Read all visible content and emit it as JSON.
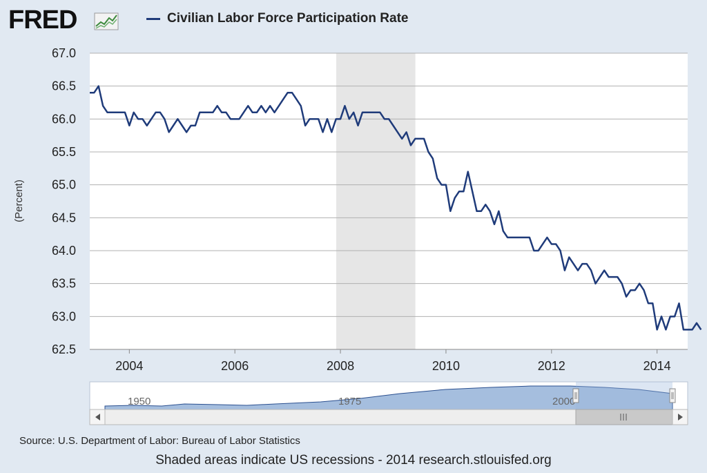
{
  "logo": {
    "text": "FRED"
  },
  "legend": {
    "label": "Civilian Labor Force Participation Rate",
    "color": "#1f3b7a"
  },
  "source": "Source: U.S. Department of Labor: Bureau of Labor Statistics",
  "footer": "Shaded areas indicate US recessions - 2014 research.stlouisfed.org",
  "colors": {
    "line": "#1f3b7a",
    "recession": "#e6e6e6",
    "grid": "#b0b0b0",
    "navigator_fill": "#7fa3d0",
    "navigator_selected": "#c9d7e8"
  },
  "navigator": {
    "labels": [
      "1950",
      "1975",
      "2000"
    ],
    "scroll_left_icon": "arrow-left-icon",
    "scroll_right_icon": "arrow-right-icon",
    "thumb_icon": "grip-icon"
  },
  "chart_data": {
    "type": "line",
    "title": "",
    "xlabel": "",
    "ylabel": "(Percent)",
    "xlim": [
      2003.25,
      2014.58
    ],
    "ylim": [
      62.5,
      67.0
    ],
    "yticks": [
      62.5,
      63.0,
      63.5,
      64.0,
      64.5,
      65.0,
      65.5,
      66.0,
      66.5,
      67.0
    ],
    "xticks": [
      2004,
      2006,
      2008,
      2010,
      2012,
      2014
    ],
    "grid": true,
    "legend_position": "top",
    "recessions": [
      [
        2007.92,
        2009.42
      ]
    ],
    "series": [
      {
        "name": "Civilian Labor Force Participation Rate",
        "start": 2003.25,
        "step_months": 1,
        "values": [
          66.4,
          66.4,
          66.5,
          66.2,
          66.1,
          66.1,
          66.1,
          66.1,
          66.1,
          65.9,
          66.1,
          66.0,
          66.0,
          65.9,
          66.0,
          66.1,
          66.1,
          66.0,
          65.8,
          65.9,
          66.0,
          65.9,
          65.8,
          65.9,
          65.9,
          66.1,
          66.1,
          66.1,
          66.1,
          66.2,
          66.1,
          66.1,
          66.0,
          66.0,
          66.0,
          66.1,
          66.2,
          66.1,
          66.1,
          66.2,
          66.1,
          66.2,
          66.1,
          66.2,
          66.3,
          66.4,
          66.4,
          66.3,
          66.2,
          65.9,
          66.0,
          66.0,
          66.0,
          65.8,
          66.0,
          65.8,
          66.0,
          66.0,
          66.2,
          66.0,
          66.1,
          65.9,
          66.1,
          66.1,
          66.1,
          66.1,
          66.1,
          66.0,
          66.0,
          65.9,
          65.8,
          65.7,
          65.8,
          65.6,
          65.7,
          65.7,
          65.7,
          65.5,
          65.4,
          65.1,
          65.0,
          65.0,
          64.6,
          64.8,
          64.9,
          64.9,
          65.2,
          64.9,
          64.6,
          64.6,
          64.7,
          64.6,
          64.4,
          64.6,
          64.3,
          64.2,
          64.2,
          64.2,
          64.2,
          64.2,
          64.2,
          64.0,
          64.0,
          64.1,
          64.2,
          64.1,
          64.1,
          64.0,
          63.7,
          63.9,
          63.8,
          63.7,
          63.8,
          63.8,
          63.7,
          63.5,
          63.6,
          63.7,
          63.6,
          63.6,
          63.6,
          63.5,
          63.3,
          63.4,
          63.4,
          63.5,
          63.4,
          63.2,
          63.2,
          62.8,
          63.0,
          62.8,
          63.0,
          63.0,
          63.2,
          62.8,
          62.8,
          62.8,
          62.9,
          62.8
        ]
      }
    ]
  }
}
